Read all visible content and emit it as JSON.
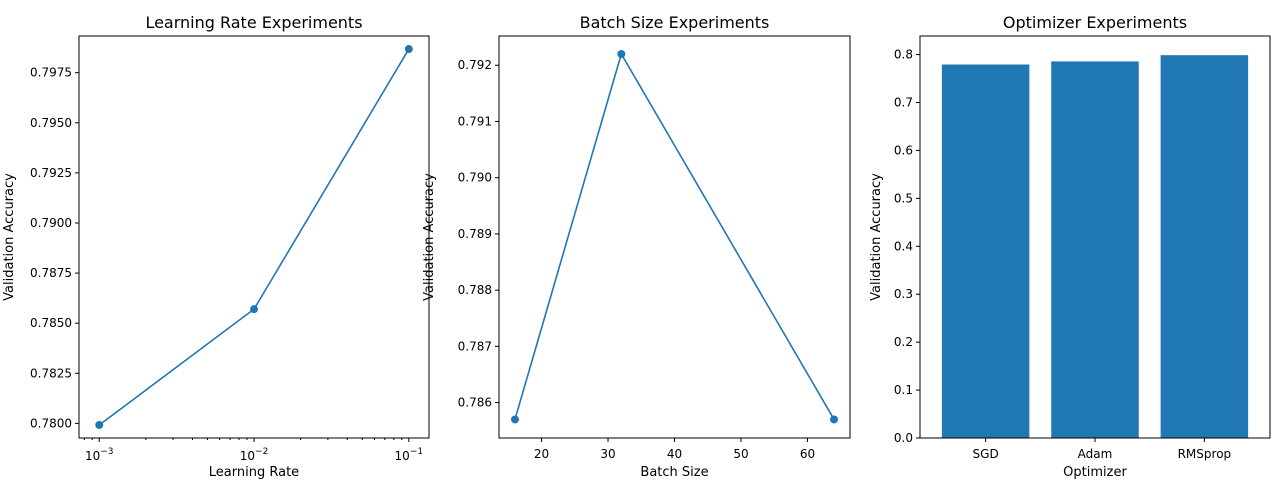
{
  "colors": {
    "series": "#1f77b4",
    "axes": "#000000",
    "background": "#ffffff"
  },
  "chart_data": [
    {
      "type": "line",
      "title": "Learning Rate Experiments",
      "xlabel": "Learning Rate",
      "ylabel": "Validation Accuracy",
      "xscale": "log",
      "x": [
        0.001,
        0.01,
        0.1
      ],
      "y": [
        0.77992,
        0.7857,
        0.79868
      ],
      "marker": "circle",
      "xlim": [
        0.00074,
        0.135
      ],
      "ylim": [
        0.77927,
        0.79933
      ],
      "xticks": [
        0.001,
        0.01,
        0.1
      ],
      "xtick_labels": [
        {
          "base": "10",
          "exp": "−3"
        },
        {
          "base": "10",
          "exp": "−2"
        },
        {
          "base": "10",
          "exp": "−1"
        }
      ],
      "yticks": [
        0.78,
        0.7825,
        0.785,
        0.7875,
        0.79,
        0.7925,
        0.795,
        0.7975
      ],
      "ytick_labels": [
        "0.7800",
        "0.7825",
        "0.7850",
        "0.7875",
        "0.7900",
        "0.7925",
        "0.7950",
        "0.7975"
      ],
      "grid": false,
      "legend": "none"
    },
    {
      "type": "line",
      "title": "Batch Size Experiments",
      "xlabel": "Batch Size",
      "ylabel": "Validation Accuracy",
      "xscale": "linear",
      "x": [
        16,
        32,
        64
      ],
      "y": [
        0.7857,
        0.7922,
        0.7857
      ],
      "marker": "circle",
      "xlim": [
        13.6,
        66.4
      ],
      "ylim": [
        0.78537,
        0.79252
      ],
      "xticks": [
        20,
        30,
        40,
        50,
        60
      ],
      "xtick_labels": [
        "20",
        "30",
        "40",
        "50",
        "60"
      ],
      "yticks": [
        0.786,
        0.787,
        0.788,
        0.789,
        0.79,
        0.791,
        0.792
      ],
      "ytick_labels": [
        "0.786",
        "0.787",
        "0.788",
        "0.789",
        "0.790",
        "0.791",
        "0.792"
      ],
      "grid": false,
      "legend": "none"
    },
    {
      "type": "bar",
      "title": "Optimizer Experiments",
      "xlabel": "Optimizer",
      "ylabel": "Validation Accuracy",
      "categories": [
        "SGD",
        "Adam",
        "RMSprop"
      ],
      "values": [
        0.7792,
        0.7857,
        0.7987
      ],
      "xlim": [
        -0.6,
        2.6
      ],
      "ylim": [
        0,
        0.8387
      ],
      "yticks": [
        0,
        0.1,
        0.2,
        0.3,
        0.4,
        0.5,
        0.6,
        0.7,
        0.8
      ],
      "ytick_labels": [
        "0.0",
        "0.1",
        "0.2",
        "0.3",
        "0.4",
        "0.5",
        "0.6",
        "0.7",
        "0.8"
      ],
      "grid": false,
      "legend": "none"
    }
  ]
}
